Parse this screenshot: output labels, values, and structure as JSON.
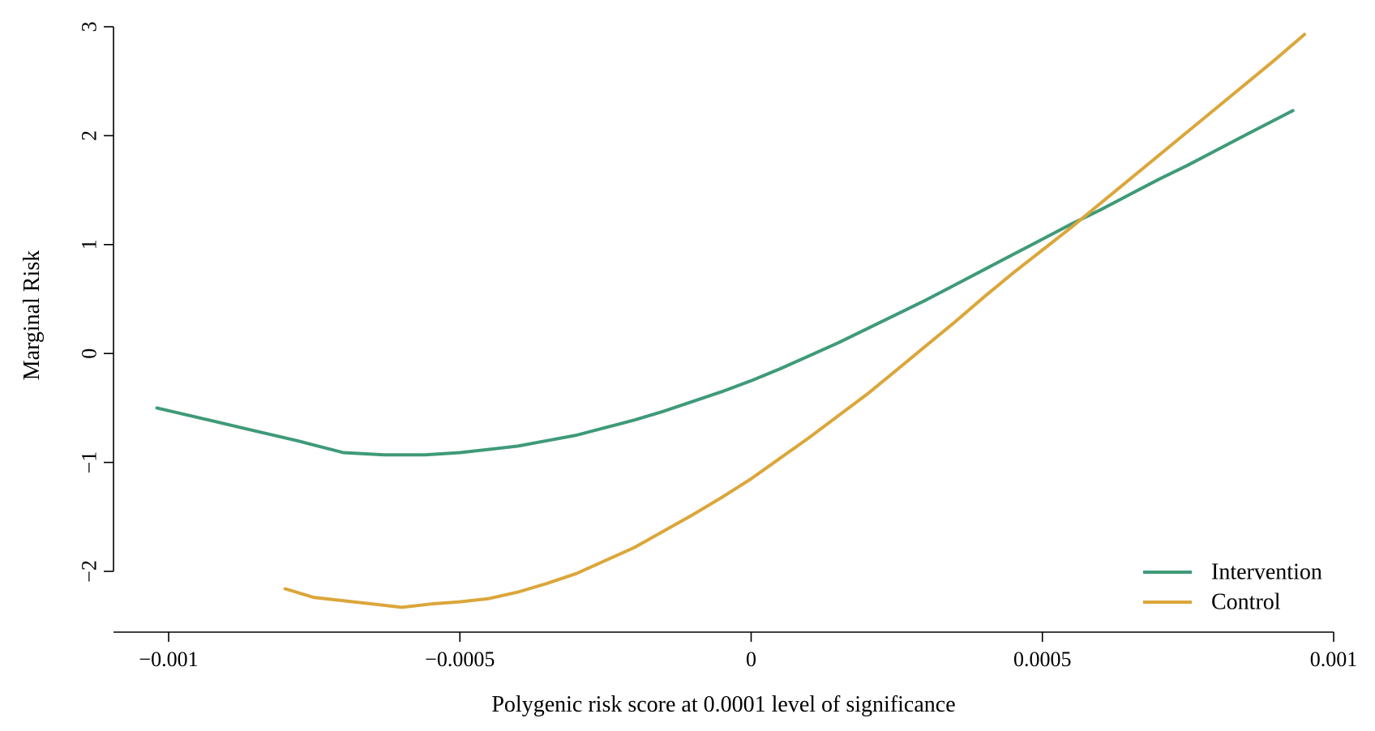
{
  "chart_data": {
    "type": "line",
    "xlabel": "Polygenic risk score at 0.0001 level of significance",
    "ylabel": "Marginal Risk",
    "xlim": [
      -0.0011,
      0.001
    ],
    "ylim": [
      -2.5,
      3
    ],
    "x_ticks": [
      -0.001,
      -0.0005,
      0,
      0.0005,
      0.001
    ],
    "x_tick_labels": [
      "−0.001",
      "−0.0005",
      "0",
      "0.0005",
      "0.001"
    ],
    "y_ticks": [
      -2,
      -1,
      0,
      1,
      2,
      3
    ],
    "y_tick_labels": [
      "−2",
      "−1",
      "0",
      "1",
      "2",
      "3"
    ],
    "grid": false,
    "legend_position": "bottom-right",
    "series": [
      {
        "name": "Intervention",
        "color": "#3f9a78",
        "x": [
          -0.00102,
          -0.00094,
          -0.00086,
          -0.00078,
          -0.0007,
          -0.00063,
          -0.00056,
          -0.0005,
          -0.00045,
          -0.0004,
          -0.00035,
          -0.0003,
          -0.00025,
          -0.0002,
          -0.00015,
          -0.0001,
          -5e-05,
          0,
          5e-05,
          0.0001,
          0.00015,
          0.0002,
          0.00025,
          0.0003,
          0.00035,
          0.0004,
          0.00045,
          0.0005,
          0.00055,
          0.0006,
          0.00065,
          0.0007,
          0.00075,
          0.0008,
          0.00085,
          0.00093
        ],
        "y": [
          -0.5,
          -0.6,
          -0.7,
          -0.8,
          -0.91,
          -0.93,
          -0.93,
          -0.91,
          -0.88,
          -0.85,
          -0.8,
          -0.75,
          -0.68,
          -0.61,
          -0.53,
          -0.44,
          -0.35,
          -0.25,
          -0.14,
          -0.02,
          0.1,
          0.23,
          0.36,
          0.49,
          0.63,
          0.77,
          0.91,
          1.05,
          1.19,
          1.32,
          1.46,
          1.6,
          1.73,
          1.87,
          2.01,
          2.23
        ]
      },
      {
        "name": "Control",
        "color": "#dba63a",
        "x": [
          -0.0008,
          -0.00075,
          -0.0007,
          -0.00065,
          -0.0006,
          -0.00055,
          -0.0005,
          -0.00045,
          -0.0004,
          -0.00035,
          -0.0003,
          -0.00025,
          -0.0002,
          -0.00015,
          -0.0001,
          -5e-05,
          0,
          5e-05,
          0.0001,
          0.00015,
          0.0002,
          0.00025,
          0.0003,
          0.00035,
          0.0004,
          0.00045,
          0.0005,
          0.00055,
          0.0006,
          0.00065,
          0.0007,
          0.00075,
          0.0008,
          0.00085,
          0.0009,
          0.00095
        ],
        "y": [
          -2.16,
          -2.24,
          -2.27,
          -2.3,
          -2.33,
          -2.3,
          -2.28,
          -2.25,
          -2.19,
          -2.11,
          -2.02,
          -1.9,
          -1.78,
          -1.63,
          -1.48,
          -1.32,
          -1.15,
          -0.96,
          -0.77,
          -0.57,
          -0.37,
          -0.15,
          0.07,
          0.29,
          0.52,
          0.74,
          0.95,
          1.16,
          1.38,
          1.6,
          1.82,
          2.04,
          2.26,
          2.48,
          2.7,
          2.93
        ]
      }
    ]
  }
}
